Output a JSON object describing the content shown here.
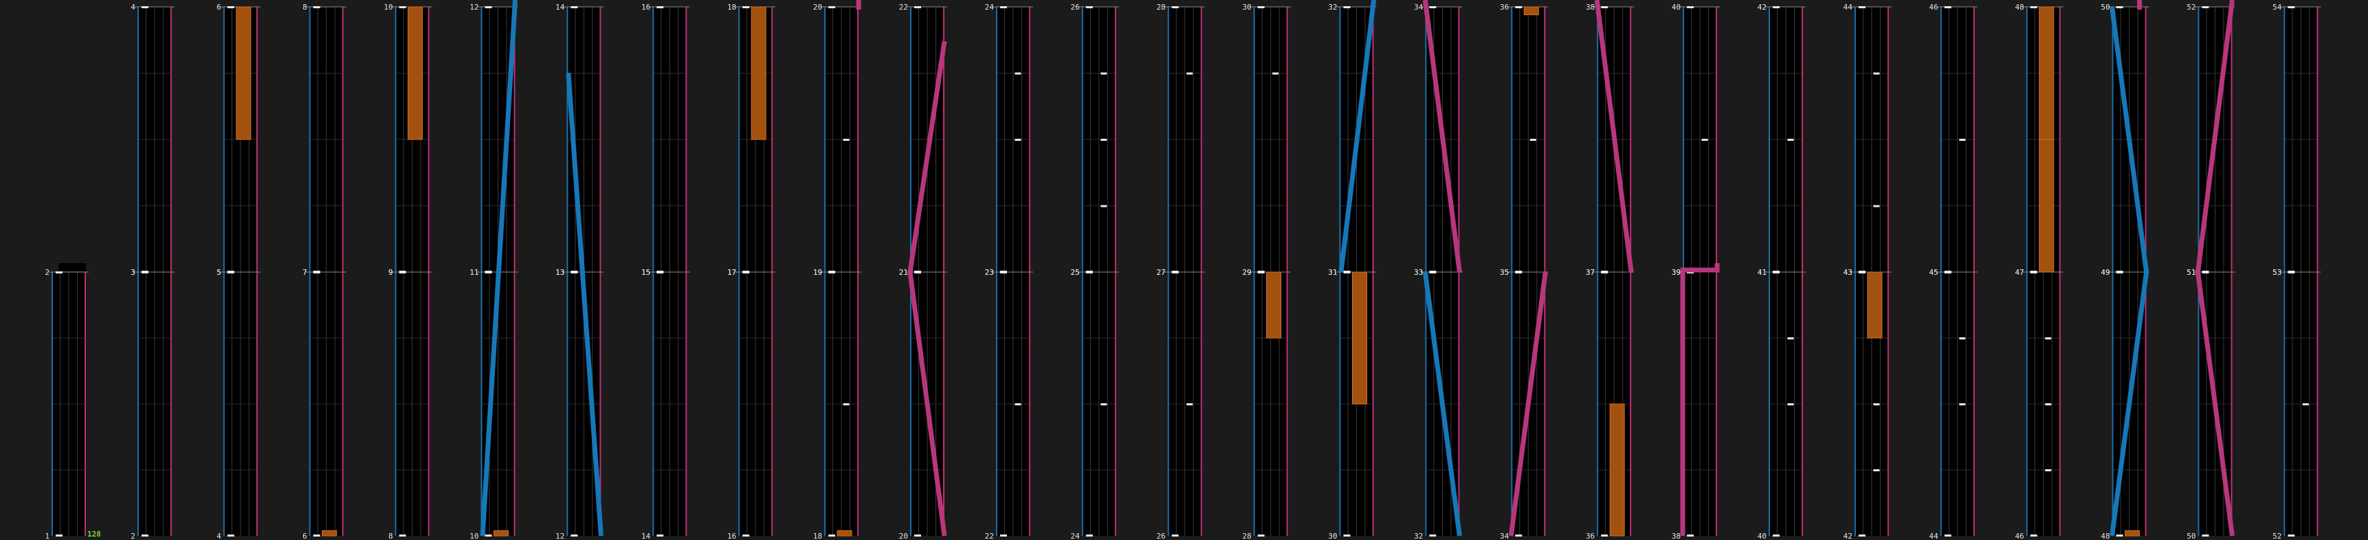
{
  "colors": {
    "background": "#1b1b1b",
    "panel": "#000000",
    "grid": "#3a3a3a",
    "left_edge": "#1f6fa8",
    "right_edge": "#c0307a",
    "blue_trace": "#1678b8",
    "magenta_trace": "#b8377c",
    "orange_block": "#a3510f",
    "white_tick": "#e8e8e8",
    "count_text": "#7cd63a"
  },
  "columns": [
    {
      "id": "c0",
      "top": null,
      "bottom": {
        "start": "2",
        "end": "1"
      },
      "count": "128"
    },
    {
      "id": "c1",
      "top": {
        "start": "4",
        "end": "3"
      },
      "bottom": {
        "start": "3",
        "end": "2"
      }
    },
    {
      "id": "c2",
      "top": {
        "start": "6",
        "end": "5"
      },
      "bottom": {
        "start": "5",
        "end": "4"
      }
    },
    {
      "id": "c3",
      "top": {
        "start": "8",
        "end": "7"
      },
      "bottom": {
        "start": "7",
        "end": "6"
      }
    },
    {
      "id": "c4",
      "top": {
        "start": "10",
        "end": "9"
      },
      "bottom": {
        "start": "9",
        "end": "8"
      }
    },
    {
      "id": "c5",
      "top": {
        "start": "12",
        "end": "11"
      },
      "bottom": {
        "start": "11",
        "end": "10"
      }
    },
    {
      "id": "c6",
      "top": {
        "start": "14",
        "end": "13"
      },
      "bottom": {
        "start": "13",
        "end": "12"
      }
    },
    {
      "id": "c7",
      "top": {
        "start": "16",
        "end": "15"
      },
      "bottom": {
        "start": "15",
        "end": "14"
      }
    },
    {
      "id": "c8",
      "top": {
        "start": "18",
        "end": "17"
      },
      "bottom": {
        "start": "17",
        "end": "16"
      }
    },
    {
      "id": "c9",
      "top": {
        "start": "20",
        "end": "19"
      },
      "bottom": {
        "start": "19",
        "end": "18"
      }
    },
    {
      "id": "c10",
      "top": {
        "start": "22",
        "end": "21"
      },
      "bottom": {
        "start": "21",
        "end": "20"
      }
    },
    {
      "id": "c11",
      "top": {
        "start": "24",
        "end": "23"
      },
      "bottom": {
        "start": "23",
        "end": "22"
      }
    },
    {
      "id": "c12",
      "top": {
        "start": "26",
        "end": "25"
      },
      "bottom": {
        "start": "25",
        "end": "24"
      }
    },
    {
      "id": "c13",
      "top": {
        "start": "28",
        "end": "27"
      },
      "bottom": {
        "start": "27",
        "end": "26"
      }
    },
    {
      "id": "c14",
      "top": {
        "start": "30",
        "end": "29"
      },
      "bottom": {
        "start": "29",
        "end": "28"
      }
    },
    {
      "id": "c15",
      "top": {
        "start": "32",
        "end": "31"
      },
      "bottom": {
        "start": "31",
        "end": "30"
      }
    },
    {
      "id": "c16",
      "top": {
        "start": "34",
        "end": "33"
      },
      "bottom": {
        "start": "33",
        "end": "32"
      }
    },
    {
      "id": "c17",
      "top": {
        "start": "36",
        "end": "35"
      },
      "bottom": {
        "start": "35",
        "end": "34"
      }
    },
    {
      "id": "c18",
      "top": {
        "start": "38",
        "end": "37"
      },
      "bottom": {
        "start": "37",
        "end": "36"
      }
    },
    {
      "id": "c19",
      "top": {
        "start": "40",
        "end": "39"
      },
      "bottom": {
        "start": "39",
        "end": "38"
      }
    },
    {
      "id": "c20",
      "top": {
        "start": "42",
        "end": "41"
      },
      "bottom": {
        "start": "41",
        "end": "40"
      }
    },
    {
      "id": "c21",
      "top": {
        "start": "44",
        "end": "43"
      },
      "bottom": {
        "start": "43",
        "end": "42"
      }
    },
    {
      "id": "c22",
      "top": {
        "start": "46",
        "end": "45"
      },
      "bottom": {
        "start": "45",
        "end": "44"
      }
    },
    {
      "id": "c23",
      "top": {
        "start": "48",
        "end": "47"
      },
      "bottom": {
        "start": "47",
        "end": "46"
      }
    },
    {
      "id": "c24",
      "top": {
        "start": "50",
        "end": "49"
      },
      "bottom": {
        "start": "49",
        "end": "48"
      }
    },
    {
      "id": "c25",
      "top": {
        "start": "52",
        "end": "51"
      },
      "bottom": {
        "start": "51",
        "end": "50"
      }
    },
    {
      "id": "c26",
      "top": {
        "start": "54",
        "end": "53"
      },
      "bottom": {
        "start": "53",
        "end": "52"
      }
    }
  ]
}
